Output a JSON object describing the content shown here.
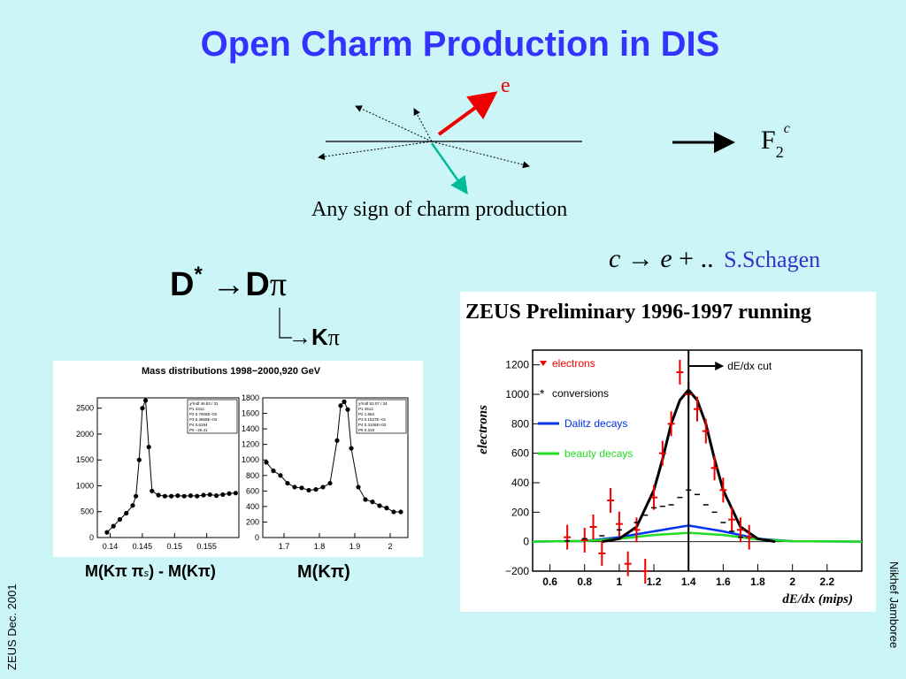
{
  "slide": {
    "title": "Open Charm Production in DIS",
    "footer_left": "ZEUS Dec. 2001",
    "footer_right": "Nikhef Jamboree"
  },
  "diagram": {
    "electron_label": "e",
    "result_F": "F",
    "result_sub": "2",
    "result_sup": "c",
    "caption": "Any sign of charm production",
    "arrow_color": "#ee0000",
    "jet_color": "#00bb99"
  },
  "decay": {
    "D": "D",
    "star": "*",
    "arrow": "→",
    "D2": "D",
    "pi": "π",
    "K": "K",
    "pi2": "π"
  },
  "semileptonic": {
    "c": "c",
    "arrow": "→",
    "e": "e",
    "rest": "+ ..",
    "author": "S.Schagen",
    "author_color": "#3333cc"
  },
  "mass_panel": {
    "title": "Mass distributions 1998−2000,920 GeV",
    "left_xlabel": "M(Kπ π",
    "left_xlabel_sub": "s",
    "left_xlabel_rest": ") - M(Kπ)",
    "right_xlabel": "M(Kπ)",
    "fit_box_left": [
      "χ²/ndf  46.83 / 31",
      "P1  4312.",
      "P2  0.7606E−02",
      "P3  0.3869E−03",
      "P4  0.6194",
      "P5  −26.41"
    ],
    "fit_box_right": [
      "χ²/ndf  53.07 / 34",
      "P1  4512.",
      "P2  1.863",
      "P3  0.1527E−01",
      "P4  0.3106E+03",
      "P5  0.319"
    ]
  },
  "chart_data": [
    {
      "type": "scatter",
      "title": "",
      "x": [
        0.1395,
        0.1405,
        0.1415,
        0.1425,
        0.1435,
        0.144,
        0.1445,
        0.145,
        0.1455,
        0.146,
        0.1465,
        0.1475,
        0.1485,
        0.1495,
        0.1505,
        0.1515,
        0.1525,
        0.1535,
        0.1545,
        0.1555,
        0.1565,
        0.1575,
        0.1585,
        0.1595
      ],
      "y": [
        100,
        220,
        350,
        470,
        620,
        800,
        1500,
        2500,
        2650,
        1750,
        900,
        820,
        800,
        800,
        810,
        800,
        810,
        800,
        820,
        830,
        810,
        830,
        850,
        860
      ],
      "xlim": [
        0.138,
        0.16
      ],
      "ylim": [
        0,
        2700
      ],
      "xticks": [
        "0.14",
        "0.145",
        "0.15",
        "0.155"
      ],
      "yticks": [
        "0",
        "500",
        "1000",
        "1500",
        "2000",
        "2500"
      ],
      "xlabel": "M(Kπ π_s) - M(Kπ)"
    },
    {
      "type": "scatter",
      "title": "",
      "x": [
        1.65,
        1.67,
        1.69,
        1.71,
        1.73,
        1.75,
        1.77,
        1.79,
        1.81,
        1.83,
        1.85,
        1.86,
        1.87,
        1.88,
        1.89,
        1.91,
        1.93,
        1.95,
        1.97,
        1.99,
        2.01,
        2.03
      ],
      "y": [
        970,
        860,
        800,
        700,
        650,
        640,
        610,
        620,
        650,
        700,
        1250,
        1700,
        1750,
        1650,
        1150,
        650,
        490,
        460,
        410,
        380,
        330,
        330
      ],
      "xlim": [
        1.64,
        2.05
      ],
      "ylim": [
        0,
        1800
      ],
      "xticks": [
        "1.7",
        "1.8",
        "1.9",
        "2"
      ],
      "yticks": [
        "0",
        "200",
        "400",
        "600",
        "800",
        "1000",
        "1200",
        "1400",
        "1600",
        "1800"
      ],
      "xlabel": "M(Kπ)"
    },
    {
      "type": "scatter",
      "title": "ZEUS Preliminary 1996-1997 running",
      "xlabel": "dE/dx (mips)",
      "ylabel": "electrons",
      "xlim": [
        0.5,
        2.4
      ],
      "ylim": [
        -200,
        1300
      ],
      "xticks": [
        "0.6",
        "0.8",
        "1",
        "1.2",
        "1.4",
        "1.6",
        "1.8",
        "2",
        "2.2"
      ],
      "yticks": [
        "−200",
        "0",
        "200",
        "400",
        "600",
        "800",
        "1000",
        "1200"
      ],
      "legend": [
        "electrons",
        "conversions",
        "Dalitz decays",
        "beauty decays"
      ],
      "annotation": "dE/dx cut",
      "cut_x": 1.4,
      "series": [
        {
          "name": "electrons",
          "x": [
            0.7,
            0.8,
            0.85,
            0.9,
            0.95,
            1.0,
            1.05,
            1.1,
            1.15,
            1.2,
            1.25,
            1.3,
            1.35,
            1.4,
            1.45,
            1.5,
            1.55,
            1.6,
            1.65,
            1.7,
            1.75
          ],
          "y": [
            30,
            10,
            100,
            -80,
            280,
            120,
            -150,
            80,
            -200,
            300,
            600,
            800,
            1150,
            1000,
            900,
            750,
            500,
            350,
            150,
            80,
            30
          ]
        },
        {
          "name": "conversions",
          "x": [
            0.7,
            0.8,
            0.9,
            1.0,
            1.1,
            1.15,
            1.2,
            1.25,
            1.3,
            1.35,
            1.4,
            1.45,
            1.5,
            1.55,
            1.6,
            1.65,
            1.7
          ],
          "y": [
            5,
            20,
            40,
            80,
            130,
            180,
            230,
            240,
            250,
            300,
            350,
            320,
            250,
            200,
            130,
            70,
            30
          ]
        },
        {
          "name": "Dalitz decays",
          "x": [
            0.5,
            0.8,
            1.0,
            1.2,
            1.4,
            1.6,
            1.8,
            2.0,
            2.4
          ],
          "y": [
            0,
            5,
            30,
            70,
            110,
            70,
            20,
            3,
            0
          ]
        },
        {
          "name": "beauty decays",
          "x": [
            0.5,
            0.8,
            1.0,
            1.2,
            1.4,
            1.6,
            1.8,
            2.0,
            2.4
          ],
          "y": [
            0,
            5,
            20,
            45,
            60,
            45,
            15,
            3,
            0
          ]
        },
        {
          "name": "fit",
          "x": [
            0.9,
            1.0,
            1.1,
            1.2,
            1.25,
            1.3,
            1.35,
            1.4,
            1.45,
            1.5,
            1.55,
            1.6,
            1.7,
            1.8,
            1.9
          ],
          "y": [
            0,
            20,
            100,
            350,
            560,
            800,
            960,
            1030,
            960,
            800,
            560,
            350,
            100,
            20,
            0
          ]
        }
      ]
    }
  ]
}
